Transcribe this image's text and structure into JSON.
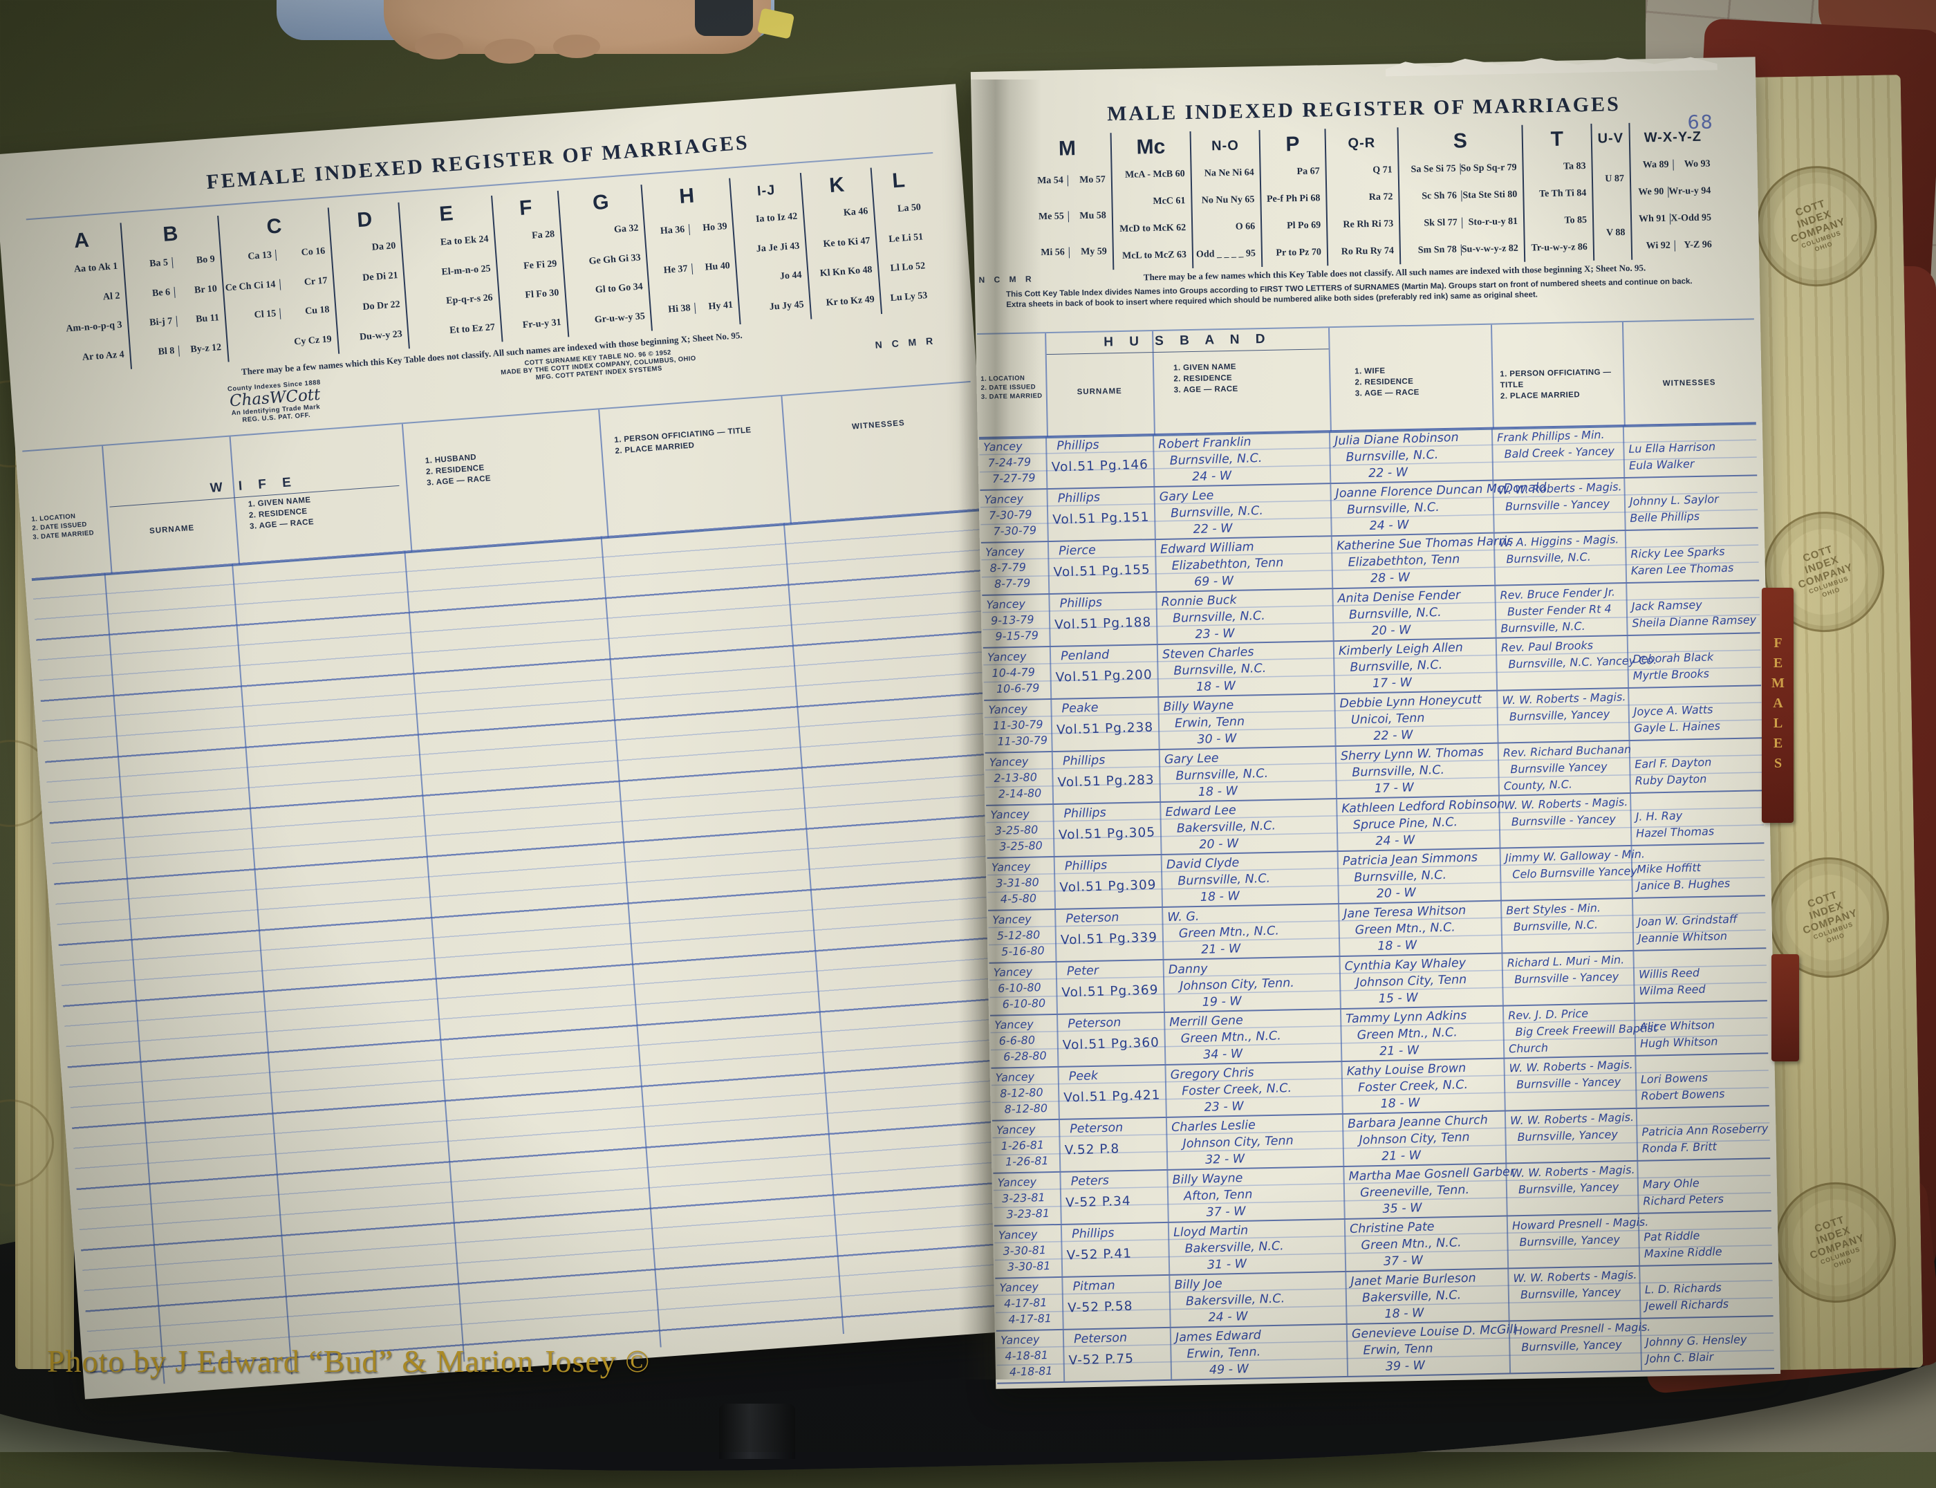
{
  "watermark": "Photo by J Edward “Bud” & Marion Josey ©",
  "tab_label": "FEMALES",
  "stamp_lines": [
    "COTT",
    "INDEX",
    "COMPANY",
    "COLUMBUS",
    "OHIO"
  ],
  "left_page": {
    "title": "FEMALE INDEXED REGISTER OF MARRIAGES",
    "ncmr": "N C M R",
    "key_columns": [
      {
        "letter": "A",
        "lines": [
          [
            "Aa to Ak 1"
          ],
          [
            "Al 2"
          ],
          [
            "Am-n-o-p-q 3"
          ],
          [
            "Ar to Az 4"
          ]
        ]
      },
      {
        "letter": "B",
        "lines": [
          [
            "Ba 5",
            "Bo 9"
          ],
          [
            "Be 6",
            "Br 10"
          ],
          [
            "Bi-j 7",
            "Bu 11"
          ],
          [
            "Bl 8",
            "By-z 12"
          ]
        ]
      },
      {
        "letter": "C",
        "lines": [
          [
            "Ca 13",
            "Co 16"
          ],
          [
            "Ce Ch Ci 14",
            "Cr 17"
          ],
          [
            "Cl 15",
            "Cu 18"
          ],
          [
            "Cy Cz 19"
          ]
        ]
      },
      {
        "letter": "D",
        "lines": [
          [
            "Da 20"
          ],
          [
            "De Di 21"
          ],
          [
            "Do Dr 22"
          ],
          [
            "Du-w-y 23"
          ]
        ]
      },
      {
        "letter": "E",
        "lines": [
          [
            "Ea to Ek 24"
          ],
          [
            "El-m-n-o 25"
          ],
          [
            "Ep-q-r-s 26"
          ],
          [
            "Et to Ez 27"
          ]
        ]
      },
      {
        "letter": "F",
        "lines": [
          [
            "Fa 28"
          ],
          [
            "Fe Fi 29"
          ],
          [
            "Fl Fo 30"
          ],
          [
            "Fr-u-y 31"
          ]
        ]
      },
      {
        "letter": "G",
        "lines": [
          [
            "Ga 32"
          ],
          [
            "Ge Gh Gi 33"
          ],
          [
            "Gl to Go 34"
          ],
          [
            "Gr-u-w-y 35"
          ]
        ]
      },
      {
        "letter": "H",
        "lines": [
          [
            "Ha 36",
            "Ho 39"
          ],
          [
            "He 37",
            "Hu 40"
          ],
          [
            "Hi 38",
            "Hy 41"
          ]
        ]
      },
      {
        "letter": "I-J",
        "lines": [
          [
            "Ia to Iz 42"
          ],
          [
            "Ja Je Ji 43"
          ],
          [
            "Jo 44"
          ],
          [
            "Ju Jy 45"
          ]
        ]
      },
      {
        "letter": "K",
        "lines": [
          [
            "Ka 46"
          ],
          [
            "Ke to Ki 47"
          ],
          [
            "Kl Kn Ko 48"
          ],
          [
            "Kr to Kz 49"
          ]
        ]
      },
      {
        "letter": "L",
        "lines": [
          [
            "La 50"
          ],
          [
            "Le Li 51"
          ],
          [
            "Ll Lo 52"
          ],
          [
            "Lu Ly 53"
          ]
        ]
      }
    ],
    "classify_note": "There may be a few names which this Key Table does not classify.   All such names are indexed with those beginning X; Sheet No. 95.",
    "trademark_top": "County Indexes Since 1888",
    "trademark_script": "ChasWCott",
    "trademark_sub": "An Identifying Trade Mark",
    "trademark_reg": "REG. U.S. PAT. OFF.",
    "credit_lines": [
      "COTT SURNAME KEY TABLE NO. 96 © 1952",
      "MADE BY THE COTT INDEX COMPANY, COLUMBUS, OHIO",
      "MFG. COTT PATENT INDEX SYSTEMS"
    ],
    "headers": {
      "location": [
        "1. LOCATION",
        "2. DATE ISSUED",
        "3. DATE MARRIED"
      ],
      "group": "W I F E",
      "surname": "SURNAME",
      "given": [
        "1. GIVEN NAME",
        "2. RESIDENCE",
        "3. AGE  —  RACE"
      ],
      "spouse": [
        "1. HUSBAND",
        "2. RESIDENCE",
        "3. AGE  —  RACE"
      ],
      "officiating": [
        "1. PERSON OFFICIATING — TITLE",
        "2. PLACE MARRIED"
      ],
      "witnesses": "WITNESSES"
    }
  },
  "right_page": {
    "title": "MALE INDEXED REGISTER OF MARRIAGES",
    "page_number": "68",
    "ncmr": "N C M R",
    "key_columns": [
      {
        "letter": "M",
        "lines": [
          [
            "Ma 54",
            "Mo 57"
          ],
          [
            "Me 55",
            "Mu 58"
          ],
          [
            "Mi 56",
            "My 59"
          ]
        ]
      },
      {
        "letter": "Mc",
        "lines": [
          [
            "McA - McB 60"
          ],
          [
            "McC 61"
          ],
          [
            "McD to McK 62"
          ],
          [
            "McL to McZ 63"
          ]
        ]
      },
      {
        "letter": "N-O",
        "lines": [
          [
            "Na Ne Ni 64"
          ],
          [
            "No Nu Ny 65"
          ],
          [
            "O 66"
          ],
          [
            "Odd _ _ _ _ 95"
          ]
        ]
      },
      {
        "letter": "P",
        "lines": [
          [
            "Pa 67"
          ],
          [
            "Pe-f Ph Pi 68"
          ],
          [
            "Pl Po 69"
          ],
          [
            "Pr to Pz 70"
          ]
        ]
      },
      {
        "letter": "Q-R",
        "lines": [
          [
            "Q 71"
          ],
          [
            "Ra 72"
          ],
          [
            "Re Rh Ri 73"
          ],
          [
            "Ro Ru Ry 74"
          ]
        ]
      },
      {
        "letter": "S",
        "lines": [
          [
            "Sa Se Si 75",
            "So Sp Sq-r 79"
          ],
          [
            "Sc Sh 76",
            "Sta Ste Sti 80"
          ],
          [
            "Sk Sl 77",
            "Sto-r-u-y 81"
          ],
          [
            "Sm Sn 78",
            "Su-v-w-y-z 82"
          ]
        ]
      },
      {
        "letter": "T",
        "lines": [
          [
            "Ta 83"
          ],
          [
            "Te Th Ti 84"
          ],
          [
            "To 85"
          ],
          [
            "Tr-u-w-y-z 86"
          ]
        ]
      },
      {
        "letter": "U-V",
        "lines": [
          [
            "U 87"
          ],
          [
            "V 88"
          ]
        ]
      },
      {
        "letter": "W-X-Y-Z",
        "lines": [
          [
            "Wa 89",
            "Wo 93"
          ],
          [
            "We 90",
            "Wr-u-y 94"
          ],
          [
            "Wh 91",
            "X-Odd 95"
          ],
          [
            "Wi 92",
            "Y-Z 96"
          ]
        ]
      }
    ],
    "classify_note": "There may be a few names which this Key Table does not classify.   All such names are indexed with those beginning X; Sheet No. 95.",
    "cott_note_lines": [
      "This Cott Key Table Index divides Names into Groups according to FIRST TWO LETTERS of SURNAMES (Martin Ma).  Groups start on front of numbered sheets and continue on back.",
      "Extra sheets in back of book to insert where required which should be numbered alike both sides (preferably red ink) same as original sheet."
    ],
    "headers": {
      "location": [
        "1. LOCATION",
        "2. DATE ISSUED",
        "3. DATE MARRIED"
      ],
      "group": "H U S B A N D",
      "surname": "SURNAME",
      "given": [
        "1. GIVEN NAME",
        "2. RESIDENCE",
        "3. AGE  —  RACE"
      ],
      "spouse": [
        "1. WIFE",
        "2. RESIDENCE",
        "3. AGE  —  RACE"
      ],
      "officiating": [
        "1. PERSON OFFICIATING — TITLE",
        "2. PLACE MARRIED"
      ],
      "witnesses": "WITNESSES"
    },
    "rows": [
      {
        "location": [
          "Yancey",
          "7-24-79",
          "7-27-79"
        ],
        "surname": [
          "Phillips",
          "Vol.51 Pg.146"
        ],
        "husband": [
          "Robert Franklin",
          "Burnsville, N.C.",
          "24 - W"
        ],
        "wife": [
          "Julia Diane Robinson",
          "Burnsville, N.C.",
          "22 - W"
        ],
        "officiating": [
          "Frank Phillips - Min.",
          "Bald Creek - Yancey"
        ],
        "witnesses": [
          "Lu Ella Harrison",
          "Eula Walker"
        ]
      },
      {
        "location": [
          "Yancey",
          "7-30-79",
          "7-30-79"
        ],
        "surname": [
          "Phillips",
          "Vol.51 Pg.151"
        ],
        "husband": [
          "Gary Lee",
          "Burnsville, N.C.",
          "22 - W"
        ],
        "wife": [
          "Joanne Florence Duncan McDonald",
          "Burnsville, N.C.",
          "24 - W"
        ],
        "officiating": [
          "W. W. Roberts - Magis.",
          "Burnsville - Yancey"
        ],
        "witnesses": [
          "Johnny L. Saylor",
          "Belle Phillips"
        ]
      },
      {
        "location": [
          "Yancey",
          "8-7-79",
          "8-7-79"
        ],
        "surname": [
          "Pierce",
          "Vol.51 Pg.155"
        ],
        "husband": [
          "Edward William",
          "Elizabethton, Tenn",
          "69 - W"
        ],
        "wife": [
          "Katherine Sue Thomas Harris",
          "Elizabethton, Tenn",
          "28 - W"
        ],
        "officiating": [
          "W. A. Higgins - Magis.",
          "Burnsville, N.C."
        ],
        "witnesses": [
          "Ricky Lee Sparks",
          "Karen Lee Thomas"
        ]
      },
      {
        "location": [
          "Yancey",
          "9-13-79",
          "9-15-79"
        ],
        "surname": [
          "Phillips",
          "Vol.51 Pg.188"
        ],
        "husband": [
          "Ronnie Buck",
          "Burnsville, N.C.",
          "23 - W"
        ],
        "wife": [
          "Anita Denise Fender",
          "Burnsville, N.C.",
          "20 - W"
        ],
        "officiating": [
          "Rev. Bruce Fender Jr.",
          "Buster Fender Rt 4",
          "Burnsville, N.C."
        ],
        "witnesses": [
          "Jack Ramsey",
          "Sheila Dianne Ramsey"
        ]
      },
      {
        "location": [
          "Yancey",
          "10-4-79",
          "10-6-79"
        ],
        "surname": [
          "Penland",
          "Vol.51 Pg.200"
        ],
        "husband": [
          "Steven Charles",
          "Burnsville, N.C.",
          "18 - W"
        ],
        "wife": [
          "Kimberly Leigh Allen",
          "Burnsville, N.C.",
          "17 - W"
        ],
        "officiating": [
          "Rev. Paul Brooks",
          "Burnsville, N.C. Yancey Co."
        ],
        "witnesses": [
          "Deborah Black",
          "Myrtle Brooks"
        ]
      },
      {
        "location": [
          "Yancey",
          "11-30-79",
          "11-30-79"
        ],
        "surname": [
          "Peake",
          "Vol.51 Pg.238"
        ],
        "husband": [
          "Billy Wayne",
          "Erwin, Tenn",
          "30 - W"
        ],
        "wife": [
          "Debbie Lynn Honeycutt",
          "Unicoi, Tenn",
          "22 - W"
        ],
        "officiating": [
          "W. W. Roberts - Magis.",
          "Burnsville, Yancey"
        ],
        "witnesses": [
          "Joyce A. Watts",
          "Gayle L. Haines"
        ]
      },
      {
        "location": [
          "Yancey",
          "2-13-80",
          "2-14-80"
        ],
        "surname": [
          "Phillips",
          "Vol.51 Pg.283"
        ],
        "husband": [
          "Gary Lee",
          "Burnsville, N.C.",
          "18 - W"
        ],
        "wife": [
          "Sherry Lynn W. Thomas",
          "Burnsville, N.C.",
          "17 - W"
        ],
        "officiating": [
          "Rev. Richard Buchanan",
          "Burnsville Yancey",
          "County, N.C."
        ],
        "witnesses": [
          "Earl F. Dayton",
          "Ruby Dayton"
        ]
      },
      {
        "location": [
          "Yancey",
          "3-25-80",
          "3-25-80"
        ],
        "surname": [
          "Phillips",
          "Vol.51 Pg.305"
        ],
        "husband": [
          "Edward Lee",
          "Bakersville, N.C.",
          "20 - W"
        ],
        "wife": [
          "Kathleen Ledford Robinson",
          "Spruce Pine, N.C.",
          "24 - W"
        ],
        "officiating": [
          "W. W. Roberts - Magis.",
          "Burnsville - Yancey"
        ],
        "witnesses": [
          "J. H. Ray",
          "Hazel Thomas"
        ]
      },
      {
        "location": [
          "Yancey",
          "3-31-80",
          "4-5-80"
        ],
        "surname": [
          "Phillips",
          "Vol.51 Pg.309"
        ],
        "husband": [
          "David Clyde",
          "Burnsville, N.C.",
          "18 - W"
        ],
        "wife": [
          "Patricia Jean Simmons",
          "Burnsville, N.C.",
          "20 - W"
        ],
        "officiating": [
          "Jimmy W. Galloway - Min.",
          "Celo Burnsville Yancey"
        ],
        "witnesses": [
          "Mike Hoffitt",
          "Janice B. Hughes"
        ]
      },
      {
        "location": [
          "Yancey",
          "5-12-80",
          "5-16-80"
        ],
        "surname": [
          "Peterson",
          "Vol.51 Pg.339"
        ],
        "husband": [
          "W. G.",
          "Green Mtn., N.C.",
          "21 - W"
        ],
        "wife": [
          "Jane Teresa Whitson",
          "Green Mtn., N.C.",
          "18 - W"
        ],
        "officiating": [
          "Bert Styles - Min.",
          "Burnsville, N.C."
        ],
        "witnesses": [
          "Joan W. Grindstaff",
          "Jeannie Whitson"
        ]
      },
      {
        "location": [
          "Yancey",
          "6-10-80",
          "6-10-80"
        ],
        "surname": [
          "Peter",
          "Vol.51 Pg.369"
        ],
        "husband": [
          "Danny",
          "Johnson City, Tenn.",
          "19 - W"
        ],
        "wife": [
          "Cynthia Kay Whaley",
          "Johnson City, Tenn",
          "15 - W"
        ],
        "officiating": [
          "Richard L. Muri - Min.",
          "Burnsville - Yancey"
        ],
        "witnesses": [
          "Willis Reed",
          "Wilma Reed"
        ]
      },
      {
        "location": [
          "Yancey",
          "6-6-80",
          "6-28-80"
        ],
        "surname": [
          "Peterson",
          "Vol.51 Pg.360"
        ],
        "husband": [
          "Merrill Gene",
          "Green Mtn., N.C.",
          "34 - W"
        ],
        "wife": [
          "Tammy Lynn Adkins",
          "Green Mtn., N.C.",
          "21 - W"
        ],
        "officiating": [
          "Rev. J. D. Price",
          "Big Creek Freewill Baptist",
          "Church"
        ],
        "witnesses": [
          "Alice Whitson",
          "Hugh Whitson"
        ]
      },
      {
        "location": [
          "Yancey",
          "8-12-80",
          "8-12-80"
        ],
        "surname": [
          "Peek",
          "Vol.51 Pg.421"
        ],
        "husband": [
          "Gregory Chris",
          "Foster Creek, N.C.",
          "23 - W"
        ],
        "wife": [
          "Kathy Louise Brown",
          "Foster Creek, N.C.",
          "18 - W"
        ],
        "officiating": [
          "W. W. Roberts - Magis.",
          "Burnsville - Yancey"
        ],
        "witnesses": [
          "Lori Bowens",
          "Robert Bowens"
        ]
      },
      {
        "location": [
          "Yancey",
          "1-26-81",
          "1-26-81"
        ],
        "surname": [
          "Peterson",
          "V.52  P.8"
        ],
        "husband": [
          "Charles Leslie",
          "Johnson City, Tenn",
          "32 - W"
        ],
        "wife": [
          "Barbara Jeanne Church",
          "Johnson City, Tenn",
          "21 - W"
        ],
        "officiating": [
          "W. W. Roberts - Magis.",
          "Burnsville, Yancey"
        ],
        "witnesses": [
          "Patricia Ann Roseberry",
          "Ronda F. Britt"
        ]
      },
      {
        "location": [
          "Yancey",
          "3-23-81",
          "3-23-81"
        ],
        "surname": [
          "Peters",
          "V-52  P.34"
        ],
        "husband": [
          "Billy Wayne",
          "Afton, Tenn",
          "37 - W"
        ],
        "wife": [
          "Martha Mae Gosnell Garber",
          "Greeneville, Tenn.",
          "35 - W"
        ],
        "officiating": [
          "W. W. Roberts - Magis.",
          "Burnsville, Yancey"
        ],
        "witnesses": [
          "Mary Ohle",
          "Richard Peters"
        ]
      },
      {
        "location": [
          "Yancey",
          "3-30-81",
          "3-30-81"
        ],
        "surname": [
          "Phillips",
          "V-52  P.41"
        ],
        "husband": [
          "Lloyd Martin",
          "Bakersville, N.C.",
          "31 - W"
        ],
        "wife": [
          "Christine Pate",
          "Green Mtn., N.C.",
          "37 - W"
        ],
        "officiating": [
          "Howard Presnell - Magis.",
          "Burnsville, Yancey"
        ],
        "witnesses": [
          "Pat Riddle",
          "Maxine Riddle"
        ]
      },
      {
        "location": [
          "Yancey",
          "4-17-81",
          "4-17-81"
        ],
        "surname": [
          "Pitman",
          "V-52  P.58"
        ],
        "husband": [
          "Billy Joe",
          "Bakersville, N.C.",
          "24 - W"
        ],
        "wife": [
          "Janet Marie Burleson",
          "Bakersville, N.C.",
          "18 - W"
        ],
        "officiating": [
          "W. W. Roberts - Magis.",
          "Burnsville, Yancey"
        ],
        "witnesses": [
          "L. D. Richards",
          "Jewell Richards"
        ]
      },
      {
        "location": [
          "Yancey",
          "4-18-81",
          "4-18-81"
        ],
        "surname": [
          "Peterson",
          "V-52  P.75"
        ],
        "husband": [
          "James Edward",
          "Erwin, Tenn.",
          "49 - W"
        ],
        "wife": [
          "Genevieve Louise D. McGill",
          "Erwin, Tenn",
          "39 - W"
        ],
        "officiating": [
          "Howard Presnell - Magis.",
          "Burnsville, Yancey"
        ],
        "witnesses": [
          "Johnny G. Hensley",
          "John C. Blair"
        ]
      }
    ]
  }
}
